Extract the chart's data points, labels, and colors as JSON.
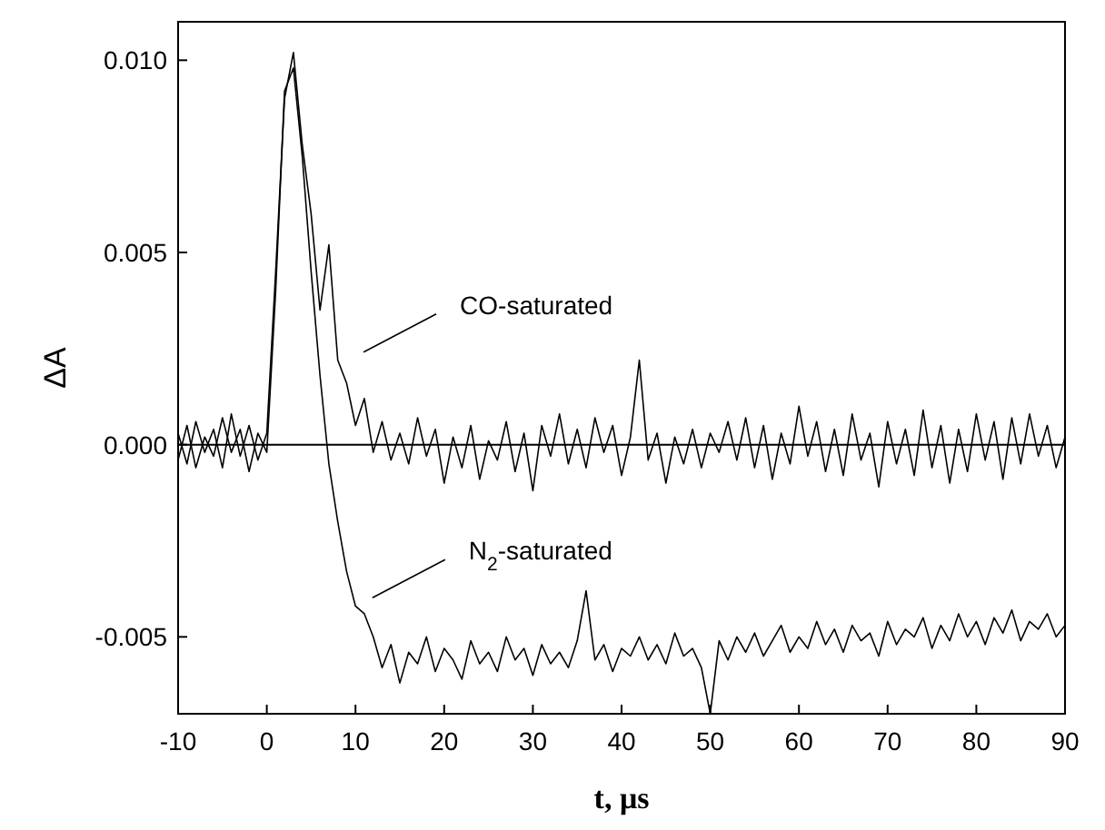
{
  "chart_data": {
    "type": "line",
    "xlabel": "t, μs",
    "ylabel": "ΔA",
    "x": [
      -10,
      -9,
      -8,
      -7,
      -6,
      -5,
      -4,
      -3,
      -2,
      -1,
      0,
      1,
      2,
      3,
      4,
      5,
      6,
      7,
      8,
      9,
      10,
      11,
      12,
      13,
      14,
      15,
      16,
      17,
      18,
      19,
      20,
      21,
      22,
      23,
      24,
      25,
      26,
      27,
      28,
      29,
      30,
      31,
      32,
      33,
      34,
      35,
      36,
      37,
      38,
      39,
      40,
      41,
      42,
      43,
      44,
      45,
      46,
      47,
      48,
      49,
      50,
      51,
      52,
      53,
      54,
      55,
      56,
      57,
      58,
      59,
      60,
      61,
      62,
      63,
      64,
      65,
      66,
      67,
      68,
      69,
      70,
      71,
      72,
      73,
      74,
      75,
      76,
      77,
      78,
      79,
      80,
      81,
      82,
      83,
      84,
      85,
      86,
      87,
      88,
      89,
      90
    ],
    "series": [
      {
        "color": "#000000",
        "values": [
          0.0003,
          -0.0005,
          0.0006,
          -0.0002,
          0.0004,
          -0.0006,
          0.0008,
          -0.0003,
          0.0005,
          -0.0004,
          0.0003,
          0.0045,
          0.009,
          0.0102,
          0.0078,
          0.006,
          0.0035,
          0.0052,
          0.0022,
          0.0016,
          0.0005,
          0.0012,
          -0.0002,
          0.0006,
          -0.0004,
          0.0003,
          -0.0005,
          0.0007,
          -0.0003,
          0.0004,
          -0.001,
          0.0002,
          -0.0006,
          0.0005,
          -0.0009,
          0.0001,
          -0.0004,
          0.0006,
          -0.0007,
          0.0003,
          -0.0012,
          0.0005,
          -0.0003,
          0.0008,
          -0.0005,
          0.0004,
          -0.0006,
          0.0007,
          -0.0002,
          0.0005,
          -0.0008,
          0.0002,
          0.0022,
          -0.0004,
          0.0003,
          -0.001,
          0.0002,
          -0.0005,
          0.0004,
          -0.0006,
          0.0003,
          -0.0002,
          0.0006,
          -0.0004,
          0.0007,
          -0.0006,
          0.0005,
          -0.0009,
          0.0003,
          -0.0005,
          0.001,
          -0.0003,
          0.0006,
          -0.0007,
          0.0004,
          -0.0008,
          0.0008,
          -0.0004,
          0.0003,
          -0.0011,
          0.0006,
          -0.0005,
          0.0004,
          -0.0008,
          0.0009,
          -0.0006,
          0.0005,
          -0.001,
          0.0004,
          -0.0007,
          0.0008,
          -0.0004,
          0.0006,
          -0.0009,
          0.0007,
          -0.0005,
          0.0008,
          -0.0003,
          0.0005,
          -0.0006,
          0.0002
        ]
      },
      {
        "color": "#000000",
        "values": [
          -0.0004,
          0.0005,
          -0.0006,
          0.0002,
          -0.0003,
          0.0007,
          -0.0002,
          0.0004,
          -0.0007,
          0.0003,
          -0.0002,
          0.004,
          0.0092,
          0.0098,
          0.0075,
          0.0045,
          0.0018,
          -0.0005,
          -0.002,
          -0.0033,
          -0.0042,
          -0.0044,
          -0.005,
          -0.0058,
          -0.0052,
          -0.0062,
          -0.0054,
          -0.0057,
          -0.005,
          -0.0059,
          -0.0053,
          -0.0056,
          -0.0061,
          -0.0051,
          -0.0057,
          -0.0054,
          -0.0059,
          -0.005,
          -0.0056,
          -0.0053,
          -0.006,
          -0.0052,
          -0.0057,
          -0.0054,
          -0.0058,
          -0.0051,
          -0.0038,
          -0.0056,
          -0.0052,
          -0.0059,
          -0.0053,
          -0.0055,
          -0.005,
          -0.0056,
          -0.0052,
          -0.0057,
          -0.0049,
          -0.0055,
          -0.0053,
          -0.0058,
          -0.007,
          -0.0051,
          -0.0056,
          -0.005,
          -0.0054,
          -0.0049,
          -0.0055,
          -0.0051,
          -0.0047,
          -0.0054,
          -0.005,
          -0.0053,
          -0.0046,
          -0.0052,
          -0.0048,
          -0.0054,
          -0.0047,
          -0.0051,
          -0.0049,
          -0.0055,
          -0.0046,
          -0.0052,
          -0.0048,
          -0.005,
          -0.0045,
          -0.0053,
          -0.0047,
          -0.0051,
          -0.0044,
          -0.005,
          -0.0046,
          -0.0052,
          -0.0045,
          -0.0049,
          -0.0043,
          -0.0051,
          -0.0046,
          -0.0048,
          -0.0044,
          -0.005,
          -0.0047
        ]
      }
    ],
    "xlim": [
      -10,
      90
    ],
    "xticks": [
      -10,
      0,
      10,
      20,
      30,
      40,
      50,
      60,
      70,
      80,
      90
    ],
    "ylim": [
      -0.007,
      0.011
    ],
    "yticks": [
      {
        "value": -0.005,
        "label": "-0.005"
      },
      {
        "value": 0,
        "label": "0.000"
      },
      {
        "value": 0.005,
        "label": "0.005"
      },
      {
        "value": 0.01,
        "label": "0.010"
      }
    ],
    "ref_lines": [
      {
        "axis": "y",
        "value": 0,
        "color": "#000000"
      }
    ],
    "annotations": [
      "CO-saturated",
      "N$_{2}$-saturated"
    ],
    "grid": false,
    "marker": "none",
    "line_style": "solid"
  }
}
